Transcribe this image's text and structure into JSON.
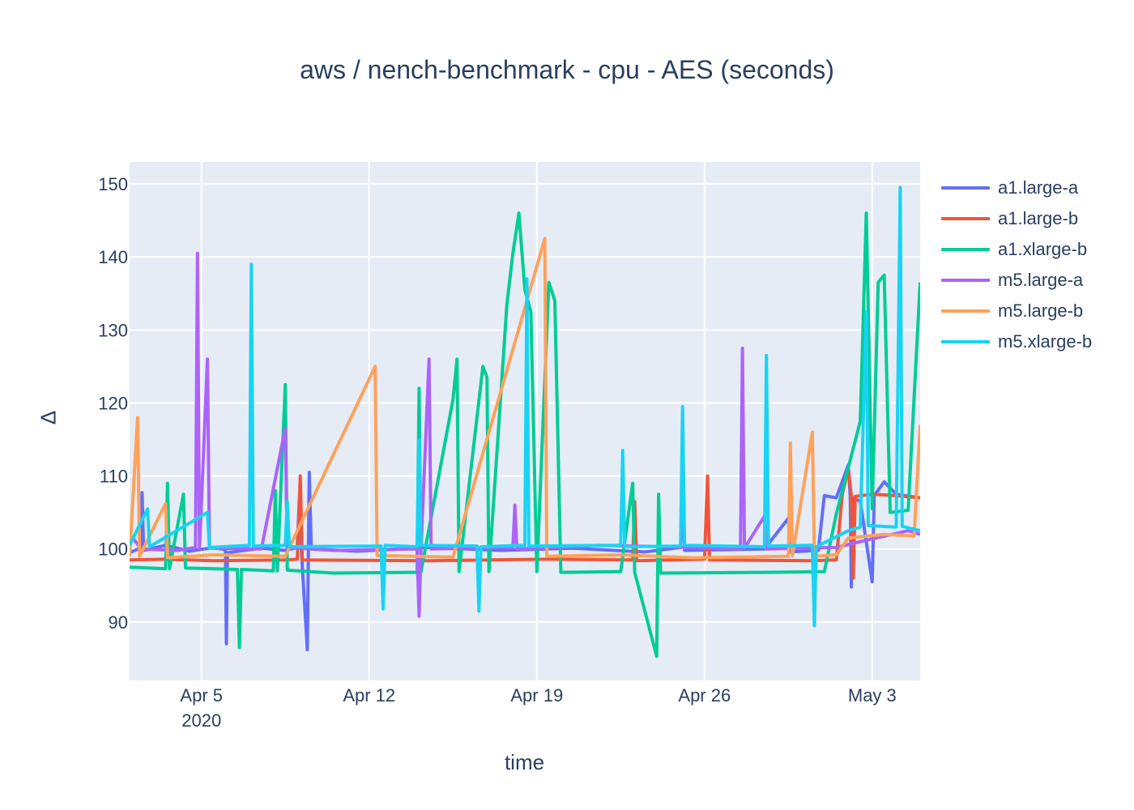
{
  "chart_data": {
    "type": "line",
    "title": "aws / nench-benchmark - cpu - AES (seconds)",
    "xlabel": "time",
    "ylabel": "Δ",
    "x_axis": {
      "type": "date",
      "range": [
        "2020-04-02",
        "2020-05-05"
      ],
      "ticks": [
        {
          "date": "2020-04-05",
          "label": "Apr 5",
          "sublabel": "2020"
        },
        {
          "date": "2020-04-12",
          "label": "Apr 12",
          "sublabel": ""
        },
        {
          "date": "2020-04-19",
          "label": "Apr 19",
          "sublabel": ""
        },
        {
          "date": "2020-04-26",
          "label": "Apr 26",
          "sublabel": ""
        },
        {
          "date": "2020-05-03",
          "label": "May 3",
          "sublabel": ""
        }
      ]
    },
    "y_axis": {
      "range": [
        82,
        153
      ],
      "ticks": [
        90,
        100,
        110,
        120,
        130,
        140,
        150
      ]
    },
    "grid": true,
    "legend_position": "top-right",
    "plot_bgcolor": "#e5ecf6",
    "series": [
      {
        "name": "a1.large-a",
        "color": "#636efa",
        "points": [
          [
            "2020-04-02 00:00",
            99.5
          ],
          [
            "2020-04-02 12:00",
            100.2
          ],
          [
            "2020-04-02 12:30",
            107.7
          ],
          [
            "2020-04-02 14:00",
            99.8
          ],
          [
            "2020-04-03 12:00",
            100.5
          ],
          [
            "2020-04-04 12:00",
            99.7
          ],
          [
            "2020-04-05 12:00",
            100.2
          ],
          [
            "2020-04-06 00:00",
            99.9
          ],
          [
            "2020-04-06 01:00",
            87.0
          ],
          [
            "2020-04-06 02:00",
            99.5
          ],
          [
            "2020-04-07 12:00",
            100.1
          ],
          [
            "2020-04-08 12:00",
            99.8
          ],
          [
            "2020-04-09 00:00",
            100.2
          ],
          [
            "2020-04-09 02:00",
            106.8
          ],
          [
            "2020-04-09 04:00",
            100.0
          ],
          [
            "2020-04-09 10:00",
            86.2
          ],
          [
            "2020-04-09 12:00",
            110.5
          ],
          [
            "2020-04-09 14:00",
            100.0
          ],
          [
            "2020-04-11 12:00",
            99.7
          ],
          [
            "2020-04-14 12:00",
            100.2
          ],
          [
            "2020-04-17 12:00",
            99.8
          ],
          [
            "2020-04-20 12:00",
            100.1
          ],
          [
            "2020-04-23 12:00",
            99.6
          ],
          [
            "2020-04-25 00:00",
            100.2
          ],
          [
            "2020-04-25 02:00",
            106.0
          ],
          [
            "2020-04-25 04:00",
            99.8
          ],
          [
            "2020-04-28 12:00",
            100.0
          ],
          [
            "2020-04-29 12:00",
            104.2
          ],
          [
            "2020-04-29 14:00",
            99.6
          ],
          [
            "2020-04-30 18:00",
            99.8
          ],
          [
            "2020-05-01 00:00",
            107.3
          ],
          [
            "2020-05-01 12:00",
            107.0
          ],
          [
            "2020-05-02 00:00",
            111.5
          ],
          [
            "2020-05-02 02:00",
            107.2
          ],
          [
            "2020-05-02 03:00",
            94.8
          ],
          [
            "2020-05-02 05:00",
            107.0
          ],
          [
            "2020-05-02 12:00",
            106.5
          ],
          [
            "2020-05-03 00:00",
            95.5
          ],
          [
            "2020-05-03 02:00",
            107.3
          ],
          [
            "2020-05-03 12:00",
            109.2
          ],
          [
            "2020-05-04 00:00",
            107.5
          ],
          [
            "2020-05-05 00:00",
            107.0
          ]
        ]
      },
      {
        "name": "a1.large-b",
        "color": "#ef553b",
        "points": [
          [
            "2020-04-02 00:00",
            98.5
          ],
          [
            "2020-04-03 12:00",
            98.6
          ],
          [
            "2020-04-05 12:00",
            98.4
          ],
          [
            "2020-04-08 12:00",
            98.5
          ],
          [
            "2020-04-09 00:00",
            98.6
          ],
          [
            "2020-04-09 03:00",
            110.0
          ],
          [
            "2020-04-09 05:00",
            98.5
          ],
          [
            "2020-04-14 12:00",
            98.4
          ],
          [
            "2020-04-19 12:00",
            98.6
          ],
          [
            "2020-04-23 00:00",
            98.5
          ],
          [
            "2020-04-23 02:00",
            106.5
          ],
          [
            "2020-04-23 04:00",
            98.4
          ],
          [
            "2020-04-26 00:00",
            98.6
          ],
          [
            "2020-04-26 03:00",
            110.0
          ],
          [
            "2020-04-26 05:00",
            98.5
          ],
          [
            "2020-04-30 12:00",
            98.4
          ],
          [
            "2020-05-01 12:00",
            98.5
          ],
          [
            "2020-05-01 18:00",
            107.5
          ],
          [
            "2020-05-02 00:00",
            111.0
          ],
          [
            "2020-05-02 03:00",
            107.3
          ],
          [
            "2020-05-02 05:00",
            96.0
          ],
          [
            "2020-05-02 07:00",
            107.2
          ],
          [
            "2020-05-03 00:00",
            107.5
          ],
          [
            "2020-05-04 00:00",
            107.3
          ],
          [
            "2020-05-05 00:00",
            107.0
          ]
        ]
      },
      {
        "name": "a1.xlarge-b",
        "color": "#00cc96",
        "points": [
          [
            "2020-04-02 00:00",
            97.5
          ],
          [
            "2020-04-03 12:00",
            97.3
          ],
          [
            "2020-04-03 14:00",
            109.0
          ],
          [
            "2020-04-03 16:00",
            97.3
          ],
          [
            "2020-04-04 06:00",
            107.5
          ],
          [
            "2020-04-04 08:00",
            97.4
          ],
          [
            "2020-04-06 12:00",
            97.2
          ],
          [
            "2020-04-06 14:00",
            86.5
          ],
          [
            "2020-04-06 16:00",
            97.2
          ],
          [
            "2020-04-08 00:00",
            97.0
          ],
          [
            "2020-04-08 02:00",
            108.0
          ],
          [
            "2020-04-08 04:00",
            97.0
          ],
          [
            "2020-04-08 12:00",
            122.5
          ],
          [
            "2020-04-08 14:00",
            97.1
          ],
          [
            "2020-04-10 12:00",
            96.7
          ],
          [
            "2020-04-14 00:00",
            96.8
          ],
          [
            "2020-04-14 02:00",
            122.0
          ],
          [
            "2020-04-14 04:00",
            96.9
          ],
          [
            "2020-04-15 12:00",
            120.5
          ],
          [
            "2020-04-15 16:00",
            126.0
          ],
          [
            "2020-04-15 18:00",
            96.9
          ],
          [
            "2020-04-16 18:00",
            125.0
          ],
          [
            "2020-04-16 22:00",
            123.5
          ],
          [
            "2020-04-17 00:00",
            96.9
          ],
          [
            "2020-04-17 18:00",
            133.5
          ],
          [
            "2020-04-18 00:00",
            140.5
          ],
          [
            "2020-04-18 06:00",
            146.0
          ],
          [
            "2020-04-18 12:00",
            135.5
          ],
          [
            "2020-04-18 18:00",
            132.5
          ],
          [
            "2020-04-19 00:00",
            96.9
          ],
          [
            "2020-04-19 12:00",
            136.5
          ],
          [
            "2020-04-19 18:00",
            134.0
          ],
          [
            "2020-04-20 00:00",
            96.8
          ],
          [
            "2020-04-22 12:00",
            96.9
          ],
          [
            "2020-04-23 00:00",
            109.0
          ],
          [
            "2020-04-23 02:00",
            96.8
          ],
          [
            "2020-04-24 00:00",
            85.3
          ],
          [
            "2020-04-24 02:00",
            107.5
          ],
          [
            "2020-04-24 04:00",
            96.7
          ],
          [
            "2020-04-28 12:00",
            96.8
          ],
          [
            "2020-05-01 00:00",
            96.9
          ],
          [
            "2020-05-01 12:00",
            104.8
          ],
          [
            "2020-05-02 12:00",
            117.5
          ],
          [
            "2020-05-02 18:00",
            146.0
          ],
          [
            "2020-05-03 00:00",
            105.5
          ],
          [
            "2020-05-03 06:00",
            136.5
          ],
          [
            "2020-05-03 12:00",
            137.5
          ],
          [
            "2020-05-03 18:00",
            105.0
          ],
          [
            "2020-05-04 12:00",
            105.3
          ],
          [
            "2020-05-05 00:00",
            136.5
          ]
        ]
      },
      {
        "name": "m5.large-a",
        "color": "#ab63fa",
        "points": [
          [
            "2020-04-02 00:00",
            102.0
          ],
          [
            "2020-04-02 12:00",
            100.0
          ],
          [
            "2020-04-04 00:00",
            99.8
          ],
          [
            "2020-04-04 18:00",
            100.2
          ],
          [
            "2020-04-04 20:00",
            140.5
          ],
          [
            "2020-04-04 22:00",
            100.0
          ],
          [
            "2020-04-05 06:00",
            126.0
          ],
          [
            "2020-04-05 08:00",
            100.1
          ],
          [
            "2020-04-07 12:00",
            100.0
          ],
          [
            "2020-04-08 12:00",
            116.5
          ],
          [
            "2020-04-08 14:00",
            100.2
          ],
          [
            "2020-04-10 12:00",
            99.8
          ],
          [
            "2020-04-14 00:00",
            100.0
          ],
          [
            "2020-04-14 02:00",
            90.8
          ],
          [
            "2020-04-14 04:00",
            100.1
          ],
          [
            "2020-04-14 12:00",
            126.0
          ],
          [
            "2020-04-14 14:00",
            100.0
          ],
          [
            "2020-04-18 00:00",
            100.2
          ],
          [
            "2020-04-18 02:00",
            106.0
          ],
          [
            "2020-04-18 04:00",
            100.0
          ],
          [
            "2020-04-21 12:00",
            100.5
          ],
          [
            "2020-04-24 12:00",
            100.3
          ],
          [
            "2020-04-27 12:00",
            100.0
          ],
          [
            "2020-04-27 14:00",
            127.5
          ],
          [
            "2020-04-27 16:00",
            100.1
          ],
          [
            "2020-04-28 12:00",
            104.5
          ],
          [
            "2020-04-28 14:00",
            100.0
          ],
          [
            "2020-05-01 12:00",
            100.2
          ],
          [
            "2020-05-02 12:00",
            101.0
          ],
          [
            "2020-05-04 12:00",
            102.5
          ],
          [
            "2020-05-05 00:00",
            102.0
          ]
        ]
      },
      {
        "name": "m5.large-b",
        "color": "#ffa15a",
        "points": [
          [
            "2020-04-02 00:00",
            99.0
          ],
          [
            "2020-04-02 08:00",
            118.0
          ],
          [
            "2020-04-02 10:00",
            99.0
          ],
          [
            "2020-04-03 12:00",
            106.2
          ],
          [
            "2020-04-03 14:00",
            98.8
          ],
          [
            "2020-04-05 12:00",
            99.2
          ],
          [
            "2020-04-08 12:00",
            99.0
          ],
          [
            "2020-04-12 06:00",
            125.0
          ],
          [
            "2020-04-12 08:00",
            99.1
          ],
          [
            "2020-04-15 12:00",
            98.9
          ],
          [
            "2020-04-19 08:00",
            142.5
          ],
          [
            "2020-04-19 10:00",
            99.0
          ],
          [
            "2020-04-22 12:00",
            99.2
          ],
          [
            "2020-04-25 12:00",
            98.8
          ],
          [
            "2020-04-29 12:00",
            99.0
          ],
          [
            "2020-04-29 14:00",
            114.5
          ],
          [
            "2020-04-29 16:00",
            99.1
          ],
          [
            "2020-04-30 12:00",
            116.0
          ],
          [
            "2020-04-30 14:00",
            99.0
          ],
          [
            "2020-05-01 12:00",
            99.2
          ],
          [
            "2020-05-02 00:00",
            101.5
          ],
          [
            "2020-05-03 12:00",
            102.0
          ],
          [
            "2020-05-04 18:00",
            101.8
          ],
          [
            "2020-05-05 00:00",
            117.0
          ]
        ]
      },
      {
        "name": "m5.xlarge-b",
        "color": "#19d3f3",
        "points": [
          [
            "2020-04-02 00:00",
            100.5
          ],
          [
            "2020-04-02 18:00",
            105.5
          ],
          [
            "2020-04-02 20:00",
            100.3
          ],
          [
            "2020-04-05 06:00",
            105.0
          ],
          [
            "2020-04-05 08:00",
            100.2
          ],
          [
            "2020-04-07 00:00",
            100.5
          ],
          [
            "2020-04-07 02:00",
            139.0
          ],
          [
            "2020-04-07 04:00",
            100.4
          ],
          [
            "2020-04-08 12:00",
            100.5
          ],
          [
            "2020-04-08 14:00",
            106.5
          ],
          [
            "2020-04-08 16:00",
            100.3
          ],
          [
            "2020-04-12 12:00",
            100.4
          ],
          [
            "2020-04-12 14:00",
            91.8
          ],
          [
            "2020-04-12 16:00",
            100.5
          ],
          [
            "2020-04-14 00:00",
            100.3
          ],
          [
            "2020-04-14 02:00",
            115.0
          ],
          [
            "2020-04-14 04:00",
            100.5
          ],
          [
            "2020-04-16 12:00",
            100.4
          ],
          [
            "2020-04-16 14:00",
            91.5
          ],
          [
            "2020-04-16 16:00",
            100.3
          ],
          [
            "2020-04-18 12:00",
            100.5
          ],
          [
            "2020-04-18 14:00",
            137.0
          ],
          [
            "2020-04-18 16:00",
            100.4
          ],
          [
            "2020-04-22 12:00",
            100.5
          ],
          [
            "2020-04-22 14:00",
            113.5
          ],
          [
            "2020-04-22 16:00",
            100.3
          ],
          [
            "2020-04-25 00:00",
            100.4
          ],
          [
            "2020-04-25 02:00",
            119.5
          ],
          [
            "2020-04-25 04:00",
            100.5
          ],
          [
            "2020-04-28 12:00",
            100.3
          ],
          [
            "2020-04-28 14:00",
            126.5
          ],
          [
            "2020-04-28 16:00",
            100.4
          ],
          [
            "2020-04-30 12:00",
            100.5
          ],
          [
            "2020-04-30 14:00",
            89.5
          ],
          [
            "2020-04-30 16:00",
            100.3
          ],
          [
            "2020-05-02 00:00",
            102.5
          ],
          [
            "2020-05-02 12:00",
            103.0
          ],
          [
            "2020-05-02 18:00",
            132.5
          ],
          [
            "2020-05-02 20:00",
            103.2
          ],
          [
            "2020-05-04 00:00",
            103.0
          ],
          [
            "2020-05-04 04:00",
            149.5
          ],
          [
            "2020-05-04 06:00",
            103.1
          ],
          [
            "2020-05-05 00:00",
            102.5
          ]
        ]
      }
    ]
  }
}
